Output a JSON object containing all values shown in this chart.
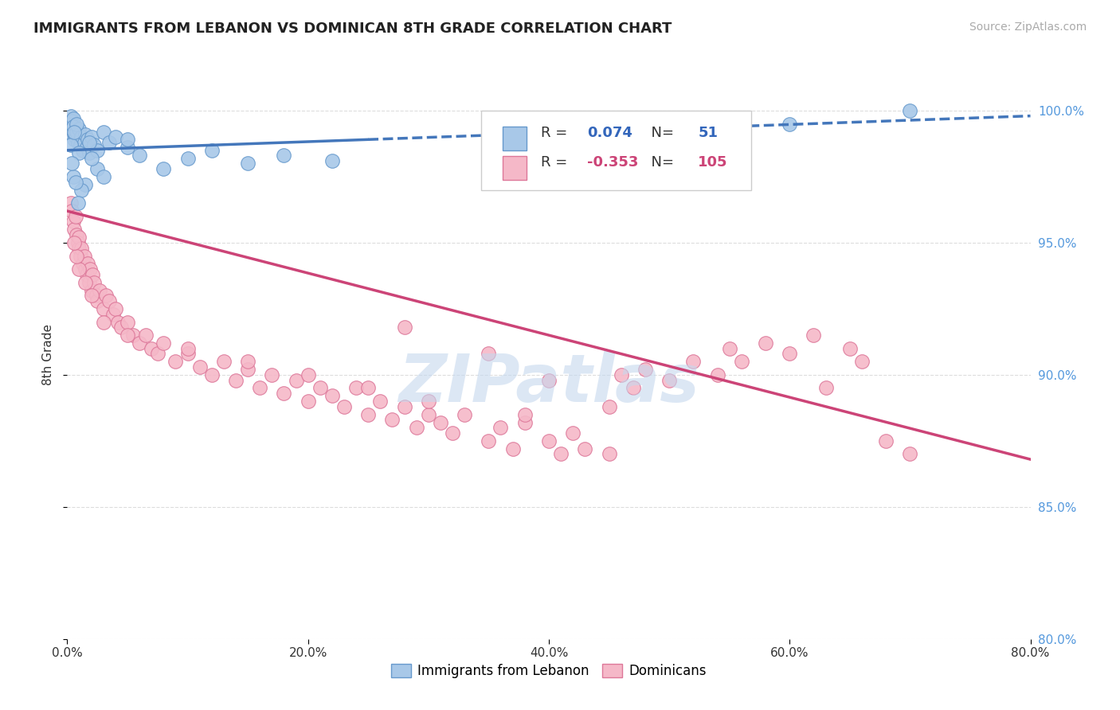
{
  "title": "IMMIGRANTS FROM LEBANON VS DOMINICAN 8TH GRADE CORRELATION CHART",
  "source_text": "Source: ZipAtlas.com",
  "ylabel": "8th Grade",
  "x_min": 0.0,
  "x_max": 80.0,
  "y_min": 80.0,
  "y_max": 101.5,
  "y_ticks": [
    80.0,
    85.0,
    90.0,
    95.0,
    100.0
  ],
  "x_ticks": [
    0.0,
    20.0,
    40.0,
    60.0,
    80.0
  ],
  "lebanon_R": 0.074,
  "lebanon_N": 51,
  "dominican_R": -0.353,
  "dominican_N": 105,
  "blue_color": "#a8c8e8",
  "blue_edge_color": "#6699cc",
  "blue_line_color": "#4477bb",
  "pink_color": "#f5b8c8",
  "pink_edge_color": "#dd7799",
  "pink_line_color": "#cc4477",
  "background_color": "#ffffff",
  "grid_color": "#dddddd",
  "watermark_text": "ZIPatlas",
  "watermark_color": "#c5d8ee",
  "right_axis_color": "#5599dd",
  "legend_blue_color": "#3366bb",
  "legend_pink_color": "#cc4477",
  "leb_line_y0": 98.5,
  "leb_line_y80": 99.8,
  "dom_line_y0": 96.2,
  "dom_line_y80": 86.8,
  "lebanon_scatter_x": [
    0.2,
    0.3,
    0.4,
    0.4,
    0.5,
    0.5,
    0.6,
    0.6,
    0.7,
    0.8,
    0.9,
    1.0,
    1.1,
    1.2,
    1.3,
    1.4,
    1.5,
    1.6,
    1.7,
    1.8,
    2.0,
    2.2,
    2.5,
    3.0,
    3.5,
    4.0,
    5.0,
    6.0,
    8.0,
    10.0,
    12.0,
    15.0,
    18.0,
    22.0,
    5.0,
    0.5,
    0.3,
    1.0,
    1.5,
    2.5,
    0.8,
    1.2,
    0.6,
    0.4,
    1.8,
    3.0,
    0.7,
    0.9,
    2.0,
    60.0,
    70.0
  ],
  "lebanon_scatter_y": [
    99.5,
    99.8,
    99.6,
    99.3,
    99.7,
    99.4,
    99.1,
    98.9,
    99.0,
    99.2,
    98.8,
    99.3,
    98.7,
    99.0,
    98.5,
    98.8,
    99.1,
    98.6,
    98.9,
    98.4,
    99.0,
    98.7,
    98.5,
    99.2,
    98.8,
    99.0,
    98.6,
    98.3,
    97.8,
    98.2,
    98.5,
    98.0,
    98.3,
    98.1,
    98.9,
    97.5,
    98.7,
    98.4,
    97.2,
    97.8,
    99.5,
    97.0,
    99.2,
    98.0,
    98.8,
    97.5,
    97.3,
    96.5,
    98.2,
    99.5,
    100.0
  ],
  "dominican_scatter_x": [
    0.3,
    0.4,
    0.5,
    0.6,
    0.7,
    0.8,
    0.9,
    1.0,
    1.0,
    1.1,
    1.2,
    1.3,
    1.4,
    1.5,
    1.6,
    1.7,
    1.8,
    1.9,
    2.0,
    2.1,
    2.2,
    2.4,
    2.5,
    2.7,
    3.0,
    3.2,
    3.5,
    3.8,
    4.0,
    4.2,
    4.5,
    5.0,
    5.5,
    6.0,
    6.5,
    7.0,
    7.5,
    8.0,
    9.0,
    10.0,
    11.0,
    12.0,
    13.0,
    14.0,
    15.0,
    16.0,
    17.0,
    18.0,
    19.0,
    20.0,
    21.0,
    22.0,
    23.0,
    24.0,
    25.0,
    26.0,
    27.0,
    28.0,
    29.0,
    30.0,
    31.0,
    32.0,
    33.0,
    35.0,
    36.0,
    37.0,
    38.0,
    40.0,
    41.0,
    42.0,
    43.0,
    45.0,
    46.0,
    47.0,
    48.0,
    50.0,
    52.0,
    54.0,
    55.0,
    56.0,
    58.0,
    60.0,
    62.0,
    63.0,
    65.0,
    66.0,
    68.0,
    70.0,
    38.0,
    30.0,
    25.0,
    20.0,
    15.0,
    10.0,
    5.0,
    3.0,
    2.0,
    1.5,
    1.0,
    0.8,
    0.6,
    45.0,
    40.0,
    35.0,
    28.0
  ],
  "dominican_scatter_y": [
    96.5,
    96.2,
    95.8,
    95.5,
    96.0,
    95.3,
    95.0,
    94.8,
    95.2,
    94.5,
    94.8,
    94.2,
    94.5,
    94.0,
    93.8,
    94.2,
    93.5,
    94.0,
    93.2,
    93.8,
    93.5,
    93.0,
    92.8,
    93.2,
    92.5,
    93.0,
    92.8,
    92.3,
    92.5,
    92.0,
    91.8,
    92.0,
    91.5,
    91.2,
    91.5,
    91.0,
    90.8,
    91.2,
    90.5,
    90.8,
    90.3,
    90.0,
    90.5,
    89.8,
    90.2,
    89.5,
    90.0,
    89.3,
    89.8,
    89.0,
    89.5,
    89.2,
    88.8,
    89.5,
    88.5,
    89.0,
    88.3,
    88.8,
    88.0,
    88.5,
    88.2,
    87.8,
    88.5,
    87.5,
    88.0,
    87.2,
    88.2,
    87.5,
    87.0,
    87.8,
    87.2,
    87.0,
    90.0,
    89.5,
    90.2,
    89.8,
    90.5,
    90.0,
    91.0,
    90.5,
    91.2,
    90.8,
    91.5,
    89.5,
    91.0,
    90.5,
    87.5,
    87.0,
    88.5,
    89.0,
    89.5,
    90.0,
    90.5,
    91.0,
    91.5,
    92.0,
    93.0,
    93.5,
    94.0,
    94.5,
    95.0,
    88.8,
    89.8,
    90.8,
    91.8
  ]
}
